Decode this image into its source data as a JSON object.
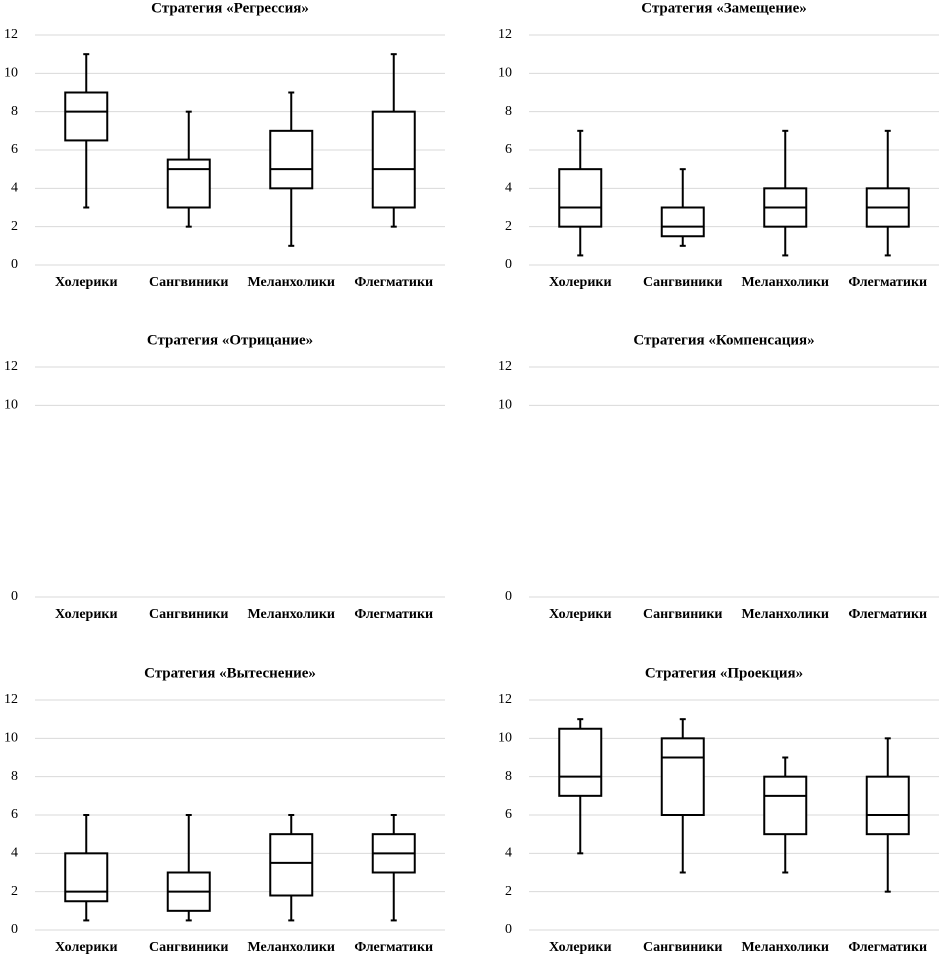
{
  "chart_data": [
    {
      "type": "box",
      "title": "Стратегия «Регрессия»",
      "categories": [
        "Холерики",
        "Сангвиники",
        "Меланхолики",
        "Флегматики"
      ],
      "min": [
        3,
        2,
        1,
        2
      ],
      "q1": [
        6.5,
        3,
        4,
        3
      ],
      "median": [
        8,
        5,
        5,
        5
      ],
      "q3": [
        9,
        5.5,
        7,
        8
      ],
      "max": [
        11,
        8,
        9,
        11
      ],
      "ylim": [
        0,
        12
      ],
      "yticks": [
        0,
        2,
        4,
        6,
        8,
        10,
        12
      ],
      "grid": true
    },
    {
      "type": "box",
      "title": "Стратегия «Замещение»",
      "categories": [
        "Холерики",
        "Сангвиники",
        "Меланхолики",
        "Флегматики"
      ],
      "min": [
        0.5,
        1,
        0.5,
        0.5
      ],
      "q1": [
        2,
        1.5,
        2,
        2
      ],
      "median": [
        3,
        2,
        3,
        3
      ],
      "q3": [
        5,
        3,
        4,
        4
      ],
      "max": [
        7,
        5,
        7,
        7
      ],
      "ylim": [
        0,
        12
      ],
      "yticks": [
        0,
        2,
        4,
        6,
        8,
        10,
        12
      ],
      "grid": true
    },
    {
      "type": "box",
      "title": "Стратегия «Отрицание»",
      "categories": [
        "Холерики",
        "Сангвиники",
        "Меланхолики",
        "Флегматики"
      ],
      "ylim": [
        0,
        12
      ],
      "yticks": [
        0,
        10,
        12
      ],
      "grid": true
    },
    {
      "type": "box",
      "title": "Стратегия «Компенсация»",
      "categories": [
        "Холерики",
        "Сангвиники",
        "Меланхолики",
        "Флегматики"
      ],
      "ylim": [
        0,
        12
      ],
      "yticks": [
        0,
        10,
        12
      ],
      "grid": true
    },
    {
      "type": "box",
      "title": "Стратегия «Вытеснение»",
      "categories": [
        "Холерики",
        "Сангвиники",
        "Меланхолики",
        "Флегматики"
      ],
      "min": [
        0.5,
        0.5,
        0.5,
        0.5
      ],
      "q1": [
        1.5,
        1,
        1.8,
        3
      ],
      "median": [
        2,
        2,
        3.5,
        4
      ],
      "q3": [
        4,
        3,
        5,
        5
      ],
      "max": [
        6,
        6,
        6,
        6
      ],
      "ylim": [
        0,
        12
      ],
      "yticks": [
        0,
        2,
        4,
        6,
        8,
        10,
        12
      ],
      "grid": true
    },
    {
      "type": "box",
      "title": "Стратегия «Проекция»",
      "categories": [
        "Холерики",
        "Сангвиники",
        "Меланхолики",
        "Флегматики"
      ],
      "min": [
        4,
        3,
        3,
        2
      ],
      "q1": [
        7,
        6,
        5,
        5
      ],
      "median": [
        8,
        9,
        7,
        6
      ],
      "q3": [
        10.5,
        10,
        8,
        8
      ],
      "max": [
        11,
        11,
        9,
        10
      ],
      "ylim": [
        0,
        12
      ],
      "yticks": [
        0,
        2,
        4,
        6,
        8,
        10,
        12
      ],
      "grid": true
    }
  ]
}
